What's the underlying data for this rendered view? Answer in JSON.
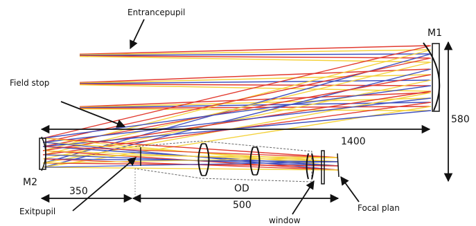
{
  "labels": {
    "entrance_pupil": "Entrancepupil",
    "m1": "M1",
    "field_stop": "Field stop",
    "m2": "M2",
    "exit_pupil": "Exitpupil",
    "od": "OD",
    "window": "window",
    "focal_plan": "Focal plan"
  },
  "dimensions": {
    "d1400": "1400",
    "d580": "580",
    "d350": "350",
    "d500": "500"
  },
  "colors": {
    "rays": [
      "#e23a2f",
      "#f4d23c",
      "#3f4fbf",
      "#d63384"
    ],
    "ink": "#111111",
    "guide": "#888888"
  }
}
